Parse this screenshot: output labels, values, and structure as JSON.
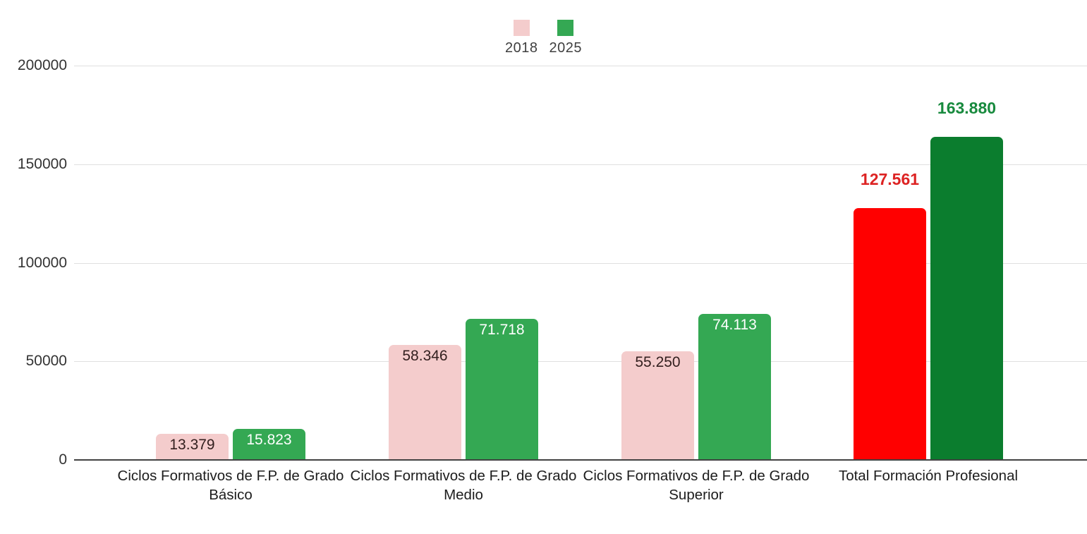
{
  "legend": {
    "items": [
      {
        "label": "2018",
        "color": "#f4cccc"
      },
      {
        "label": "2025",
        "color": "#34a853"
      }
    ]
  },
  "chart_data": {
    "type": "bar",
    "title": "",
    "categories": [
      "Ciclos Formativos de F.P. de Grado Básico",
      "Ciclos Formativos de F.P. de Grado Medio",
      "Ciclos Formativos de F.P. de Grado Superior",
      "Total Formación Profesional"
    ],
    "series": [
      {
        "name": "2018",
        "values": [
          13379,
          58346,
          55250,
          127561
        ]
      },
      {
        "name": "2025",
        "values": [
          15823,
          71718,
          74113,
          163880
        ]
      }
    ],
    "value_labels": [
      [
        "13.379",
        "58.346",
        "55.250",
        "127.561"
      ],
      [
        "15.823",
        "71.718",
        "74.113",
        "163.880"
      ]
    ],
    "bar_colors": [
      [
        "#f4cccc",
        "#f4cccc",
        "#f4cccc",
        "#ff0000"
      ],
      [
        "#34a853",
        "#34a853",
        "#34a853",
        "#0b7d2e"
      ]
    ],
    "value_label_colors": [
      [
        "#33201f",
        "#33201f",
        "#33201f",
        "#dd2323"
      ],
      [
        "#ffffff",
        "#ffffff",
        "#ffffff",
        "#188a3e"
      ]
    ],
    "value_label_placement": [
      [
        "inside",
        "inside",
        "inside",
        "above"
      ],
      [
        "inside",
        "inside",
        "inside",
        "above"
      ]
    ],
    "ylabel": "",
    "xlabel": "",
    "ylim": [
      0,
      200000
    ],
    "yticks": [
      "0",
      "50000",
      "100000",
      "150000",
      "200000"
    ],
    "grid": true,
    "legend_position": "top-center",
    "colors": {
      "grid": "#e0e0e0",
      "axis": "#424242",
      "background": "#ffffff"
    }
  }
}
